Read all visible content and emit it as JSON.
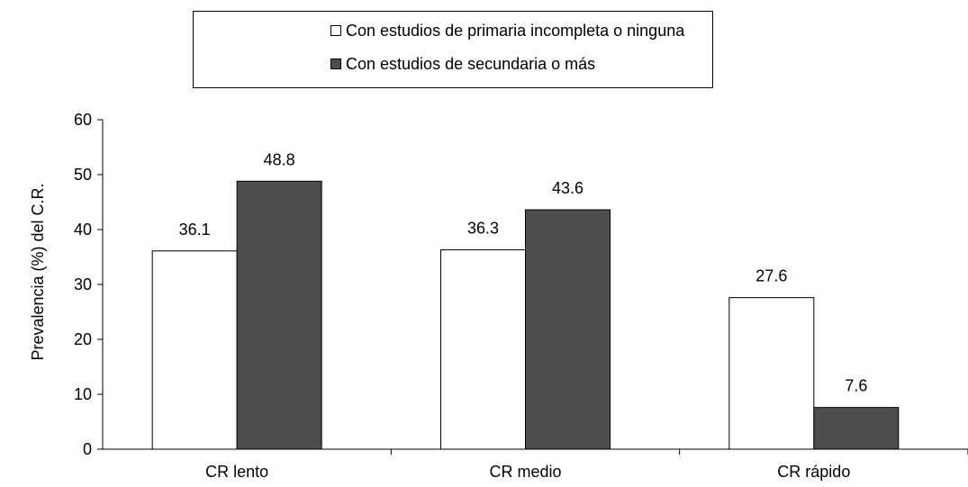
{
  "chart_data": {
    "type": "bar",
    "categories": [
      "CR lento",
      "CR medio",
      "CR rápido"
    ],
    "series": [
      {
        "name": "Con estudios de primaria incompleta o ninguna",
        "values": [
          36.1,
          36.3,
          27.6
        ],
        "color": "#ffffff"
      },
      {
        "name": "Con estudios de secundaria o más",
        "values": [
          48.8,
          43.6,
          7.6
        ],
        "color": "#4d4d4d"
      }
    ],
    "value_labels": [
      [
        "36.1",
        "36.3",
        "27.6"
      ],
      [
        "48.8",
        "43.6",
        "7.6"
      ]
    ],
    "ylabel": "Prevalencia (%) del C.R.",
    "xlabel": "",
    "ylim": [
      0,
      60
    ],
    "yticks": [
      0,
      10,
      20,
      30,
      40,
      50,
      60
    ],
    "grid": false,
    "legend_position": "top"
  }
}
